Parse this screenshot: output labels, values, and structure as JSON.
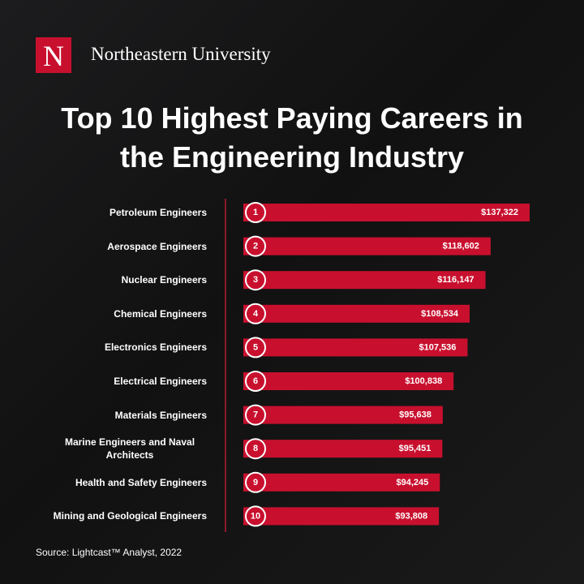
{
  "brand": {
    "logo_letter": "N",
    "name": "Northeastern University"
  },
  "chart_data": {
    "type": "bar",
    "orientation": "horizontal",
    "title": "Top 10 Highest Paying Careers in the Engineering Industry",
    "categories": [
      "Petroleum Engineers",
      "Aerospace Engineers",
      "Nuclear Engineers",
      "Chemical Engineers",
      "Electronics Engineers",
      "Electrical Engineers",
      "Materials Engineers",
      "Marine Engineers and Naval Architects",
      "Health and Safety Engineers",
      "Mining and Geological Engineers"
    ],
    "ranks": [
      1,
      2,
      3,
      4,
      5,
      6,
      7,
      8,
      9,
      10
    ],
    "values": [
      137322,
      118602,
      116147,
      108534,
      107536,
      100838,
      95638,
      95451,
      94245,
      93808
    ],
    "value_labels": [
      "$137,322",
      "$118,602",
      "$116,147",
      "$108,534",
      "$107,536",
      "$100,838",
      "$95,638",
      "$95,451",
      "$94,245",
      "$93,808"
    ],
    "color": "#c8102e",
    "source": "Source: Lightcast™ Analyst, 2022"
  }
}
